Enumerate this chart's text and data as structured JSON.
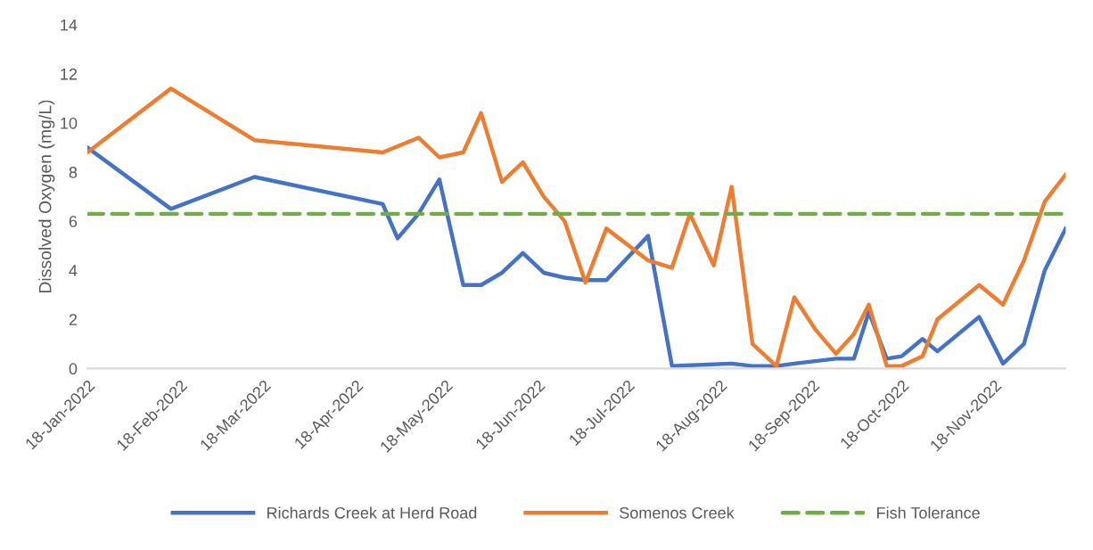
{
  "chart_data": {
    "type": "line",
    "ylabel": "Dissolved Oxygen (mg/L)",
    "series": [
      {
        "name": "Richards Creek at Herd Road",
        "color": "#4472c4",
        "x": [
          "2022-01-18",
          "2022-02-15",
          "2022-03-15",
          "2022-04-27",
          "2022-05-02",
          "2022-05-09",
          "2022-05-16",
          "2022-05-24",
          "2022-05-30",
          "2022-06-06",
          "2022-06-13",
          "2022-06-20",
          "2022-06-27",
          "2022-07-04",
          "2022-07-11",
          "2022-07-25",
          "2022-08-02",
          "2022-08-22",
          "2022-08-29",
          "2022-09-06",
          "2022-09-12",
          "2022-09-19",
          "2022-09-26",
          "2022-10-02",
          "2022-10-07",
          "2022-10-13",
          "2022-10-18",
          "2022-10-25",
          "2022-10-30",
          "2022-11-13",
          "2022-11-21",
          "2022-11-28",
          "2022-12-05",
          "2022-12-12"
        ],
        "values": [
          9.0,
          6.5,
          7.8,
          6.7,
          5.3,
          6.3,
          7.7,
          3.4,
          3.4,
          3.9,
          4.7,
          3.9,
          3.7,
          3.6,
          3.6,
          5.4,
          0.1,
          0.2,
          0.1,
          0.1,
          0.2,
          0.3,
          0.4,
          0.4,
          2.3,
          0.4,
          0.5,
          1.2,
          0.7,
          2.1,
          0.2,
          1.0,
          4.0,
          5.7
        ]
      },
      {
        "name": "Somenos Creek",
        "color": "#ed7d31",
        "x": [
          "2022-01-18",
          "2022-02-15",
          "2022-03-15",
          "2022-04-27",
          "2022-05-09",
          "2022-05-16",
          "2022-05-24",
          "2022-05-30",
          "2022-06-06",
          "2022-06-13",
          "2022-06-20",
          "2022-06-27",
          "2022-07-04",
          "2022-07-11",
          "2022-07-25",
          "2022-08-02",
          "2022-08-08",
          "2022-08-16",
          "2022-08-22",
          "2022-08-29",
          "2022-09-06",
          "2022-09-12",
          "2022-09-19",
          "2022-09-26",
          "2022-10-02",
          "2022-10-07",
          "2022-10-13",
          "2022-10-18",
          "2022-10-25",
          "2022-10-30",
          "2022-11-13",
          "2022-11-21",
          "2022-11-28",
          "2022-12-05",
          "2022-12-12"
        ],
        "values": [
          8.8,
          11.4,
          9.3,
          8.8,
          9.4,
          8.6,
          8.8,
          10.4,
          7.6,
          8.4,
          7.0,
          6.0,
          3.5,
          5.7,
          4.4,
          4.1,
          6.3,
          4.2,
          7.4,
          1.0,
          0.1,
          2.9,
          1.6,
          0.6,
          1.4,
          2.6,
          0.1,
          0.1,
          0.5,
          2.0,
          3.4,
          2.6,
          4.4,
          6.8,
          7.9
        ]
      }
    ],
    "ref_lines": [
      {
        "axis": "y",
        "value": 6.3,
        "label": "Fish Tolerance",
        "color": "#70ad47",
        "line_style": "dashed"
      }
    ],
    "xlim": [
      "2022-01-18",
      "2022-12-12"
    ],
    "xticks": [
      {
        "value": "2022-01-18",
        "label": "18-Jan-2022"
      },
      {
        "value": "2022-02-18",
        "label": "18-Feb-2022"
      },
      {
        "value": "2022-03-18",
        "label": "18-Mar-2022"
      },
      {
        "value": "2022-04-18",
        "label": "18-Apr-2022"
      },
      {
        "value": "2022-05-18",
        "label": "18-May-2022"
      },
      {
        "value": "2022-06-18",
        "label": "18-Jun-2022"
      },
      {
        "value": "2022-07-18",
        "label": "18-Jul-2022"
      },
      {
        "value": "2022-08-18",
        "label": "18-Aug-2022"
      },
      {
        "value": "2022-09-18",
        "label": "18-Sep-2022"
      },
      {
        "value": "2022-10-18",
        "label": "18-Oct-2022"
      },
      {
        "value": "2022-11-18",
        "label": "18-Nov-2022"
      }
    ],
    "ylim": [
      0,
      14
    ],
    "yticks": [
      0,
      2,
      4,
      6,
      8,
      10,
      12,
      14
    ],
    "legend": "bottom",
    "line_style": "solid",
    "marker": "none"
  }
}
